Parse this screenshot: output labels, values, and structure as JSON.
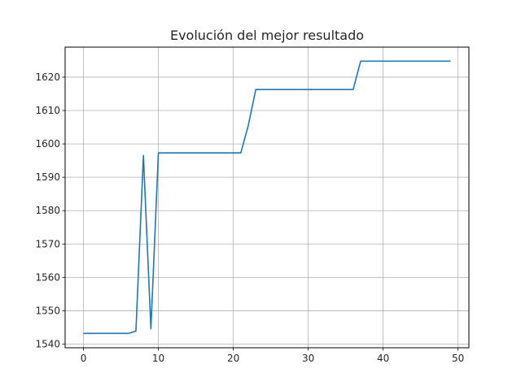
{
  "chart_data": {
    "type": "line",
    "title": "Evolución del mejor resultado",
    "xlabel": "",
    "ylabel": "",
    "xlim": [
      -2.45,
      51.45
    ],
    "ylim": [
      1538.9,
      1629.0
    ],
    "xticks": [
      0,
      10,
      20,
      30,
      40,
      50
    ],
    "yticks": [
      1540,
      1550,
      1560,
      1570,
      1580,
      1590,
      1600,
      1610,
      1620
    ],
    "grid": true,
    "line_color": "#1f77b4",
    "series": [
      {
        "x": [
          0,
          1,
          2,
          3,
          4,
          5,
          6,
          7,
          8,
          9,
          10,
          11,
          12,
          13,
          14,
          15,
          16,
          17,
          18,
          19,
          20,
          21,
          22,
          23,
          24,
          25,
          26,
          27,
          28,
          29,
          30,
          31,
          32,
          33,
          34,
          35,
          36,
          37,
          38,
          39,
          40,
          41,
          42,
          43,
          44,
          45,
          46,
          47,
          48,
          49
        ],
        "values": [
          1543.2,
          1543.2,
          1543.2,
          1543.2,
          1543.2,
          1543.2,
          1543.2,
          1543.9,
          1596.5,
          1544.6,
          1597.3,
          1597.3,
          1597.3,
          1597.3,
          1597.3,
          1597.3,
          1597.3,
          1597.3,
          1597.3,
          1597.3,
          1597.3,
          1597.3,
          1605.5,
          1616.3,
          1616.3,
          1616.3,
          1616.3,
          1616.3,
          1616.3,
          1616.3,
          1616.3,
          1616.3,
          1616.3,
          1616.3,
          1616.3,
          1616.3,
          1616.3,
          1624.8,
          1624.8,
          1624.8,
          1624.8,
          1624.8,
          1624.8,
          1624.8,
          1624.8,
          1624.8,
          1624.8,
          1624.8,
          1624.8,
          1624.8
        ]
      }
    ]
  }
}
